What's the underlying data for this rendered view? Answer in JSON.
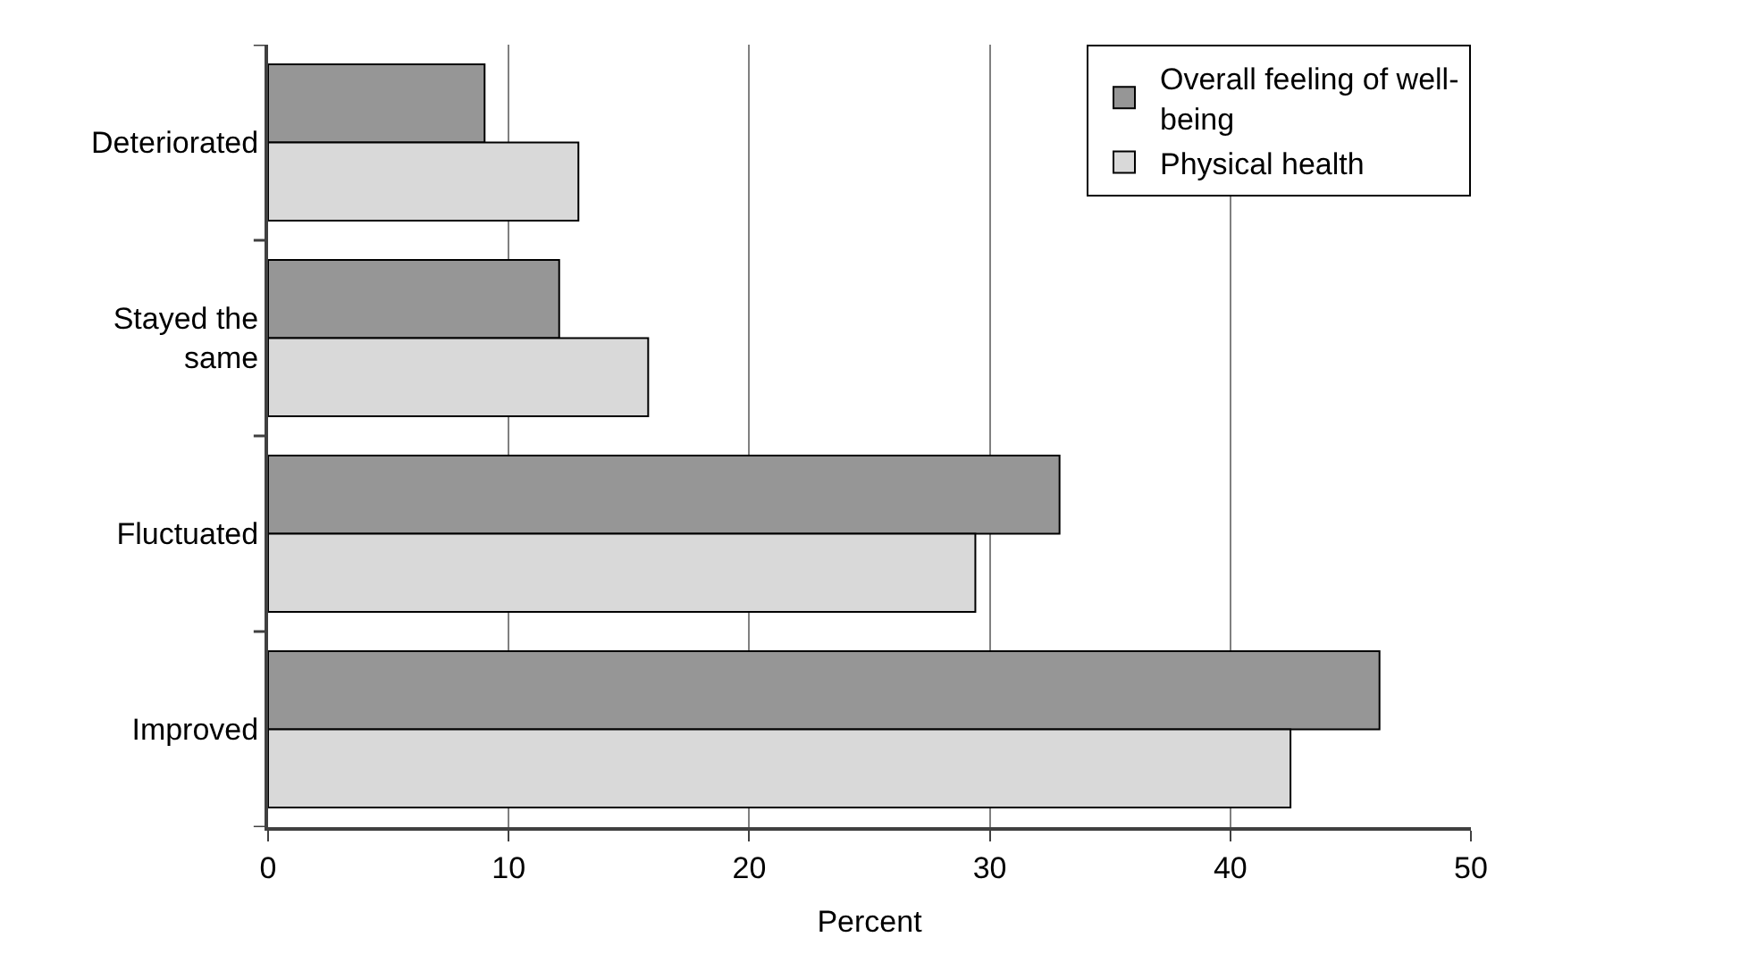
{
  "chart_data": {
    "type": "bar",
    "orientation": "horizontal",
    "xlabel": "Percent",
    "categories": [
      "Deteriorated",
      "Stayed the same",
      "Fluctuated",
      "Improved"
    ],
    "series": [
      {
        "name": "Overall feeling of well-being",
        "color": "#969696",
        "values": [
          9.0,
          12.1,
          32.9,
          46.2
        ]
      },
      {
        "name": "Physical health",
        "color": "#d9d9d9",
        "values": [
          12.9,
          15.8,
          29.4,
          42.5
        ]
      }
    ],
    "xlim": [
      0,
      50
    ],
    "xticks": [
      0,
      10,
      20,
      30,
      40,
      50
    ],
    "grid": "x",
    "legend": "top right"
  }
}
